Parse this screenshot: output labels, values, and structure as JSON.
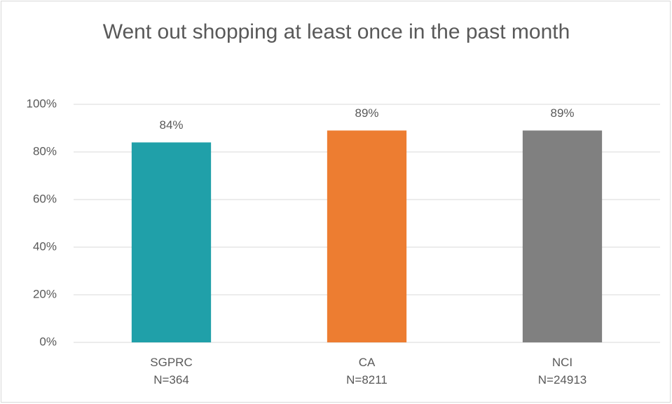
{
  "chart_data": {
    "type": "bar",
    "title": "Went out shopping at least once in the past month",
    "categories": [
      "SGPRC\nN=364",
      "CA\nN=8211",
      "NCI\nN=24913"
    ],
    "values": [
      84,
      89,
      89
    ],
    "value_labels": [
      "84%",
      "89%",
      "89%"
    ],
    "colors": [
      "#20a0a9",
      "#ed7d31",
      "#808080"
    ],
    "ylim": [
      0,
      100
    ],
    "yticks": [
      {
        "value": 0,
        "label": "0%"
      },
      {
        "value": 20,
        "label": "20%"
      },
      {
        "value": 40,
        "label": "40%"
      },
      {
        "value": 60,
        "label": "60%"
      },
      {
        "value": 80,
        "label": "80%"
      },
      {
        "value": 100,
        "label": "100%"
      }
    ],
    "grid": true
  }
}
